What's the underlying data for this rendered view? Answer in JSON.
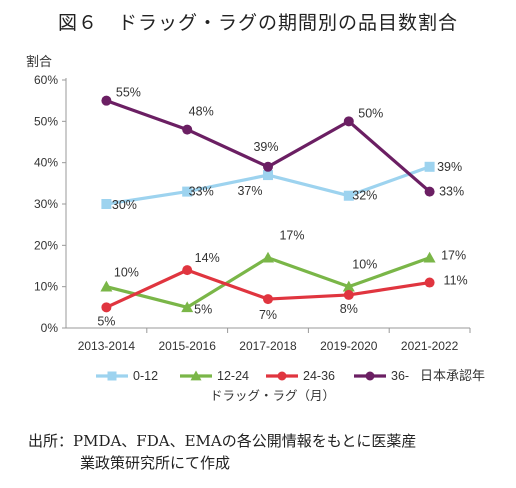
{
  "title": "図６　ドラッグ・ラグの期間別の品目数割合",
  "source_line1": "出所：PMDA、FDA、EMAの各公開情報をもとに医薬産",
  "source_line2": "業政策研究所にて作成",
  "chart_data": {
    "type": "line",
    "ylabel": "割合",
    "xlabel": "",
    "ylim": [
      0,
      60
    ],
    "yticks": [
      "0%",
      "10%",
      "20%",
      "30%",
      "40%",
      "50%",
      "60%"
    ],
    "categories": [
      "2013-2014",
      "2015-2016",
      "2017-2018",
      "2019-2020",
      "2021-2022"
    ],
    "grid": false,
    "legend_position": "bottom",
    "legend_title": "ドラッグ・ラグ（月）",
    "legend_note": "日本承認年",
    "series": [
      {
        "name": "0-12",
        "color": "#9dd3ef",
        "marker": "square",
        "values": [
          30,
          33,
          37,
          32,
          39
        ],
        "labels": [
          "30%",
          "33%",
          "37%",
          "32%",
          "39%"
        ]
      },
      {
        "name": "12-24",
        "color": "#7ab648",
        "marker": "triangle",
        "values": [
          10,
          5,
          17,
          10,
          17
        ],
        "labels": [
          "10%",
          "5%",
          "17%",
          "10%",
          "17%"
        ]
      },
      {
        "name": "24-36",
        "color": "#e0353f",
        "marker": "circle",
        "values": [
          5,
          14,
          7,
          8,
          11
        ],
        "labels": [
          "5%",
          "14%",
          "7%",
          "8%",
          "11%"
        ]
      },
      {
        "name": "36-",
        "color": "#6b1f63",
        "marker": "circle",
        "values": [
          55,
          48,
          39,
          50,
          33
        ],
        "labels": [
          "55%",
          "48%",
          "39%",
          "50%",
          "33%"
        ]
      }
    ]
  }
}
